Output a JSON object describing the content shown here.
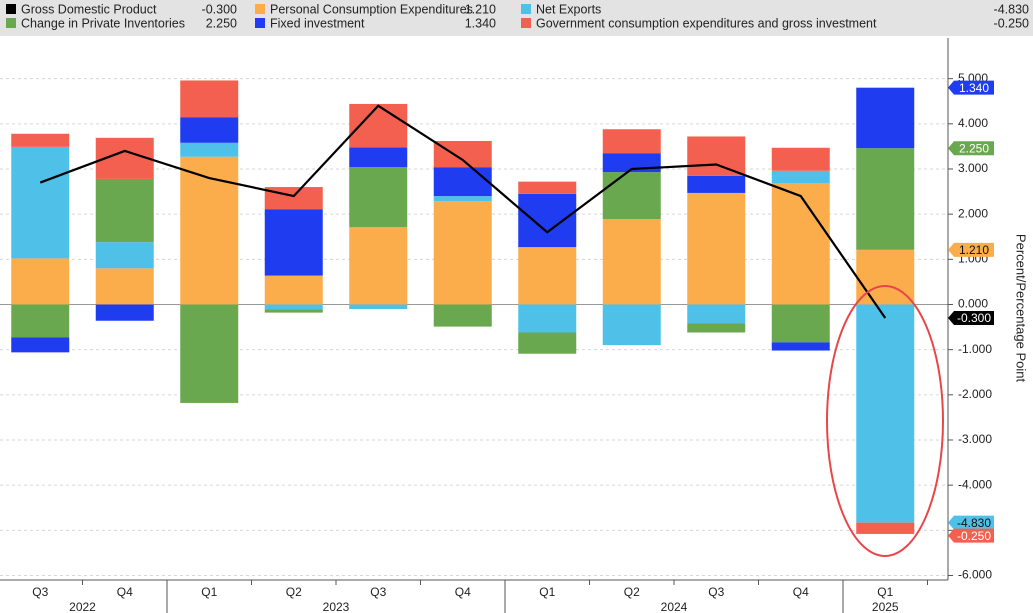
{
  "chart_data": {
    "type": "bar",
    "stacked": true,
    "y_label": "Percent/Percentage Point",
    "categories": [
      "Q3",
      "Q4",
      "Q1",
      "Q2",
      "Q3",
      "Q4",
      "Q1",
      "Q2",
      "Q3",
      "Q4",
      "Q1"
    ],
    "category_years": [
      "2022",
      "2022",
      "2023",
      "2023",
      "2023",
      "2023",
      "2024",
      "2024",
      "2024",
      "2024",
      "2025"
    ],
    "ylim": [
      -6.1,
      5.9
    ],
    "yticks": [
      {
        "value": 5,
        "label": "5.000"
      },
      {
        "value": 4,
        "label": "4.000"
      },
      {
        "value": 3,
        "label": "3.000"
      },
      {
        "value": 2,
        "label": "2.000"
      },
      {
        "value": 1,
        "label": "1.000"
      },
      {
        "value": 0,
        "label": "0.000"
      },
      {
        "value": -1,
        "label": "-1.000"
      },
      {
        "value": -2,
        "label": "-2.000"
      },
      {
        "value": -3,
        "label": "-3.000"
      },
      {
        "value": -4,
        "label": "-4.000"
      },
      {
        "value": -5,
        "label": "-5.000"
      },
      {
        "value": -6,
        "label": "-6.000"
      }
    ],
    "grid": true,
    "series": [
      {
        "name": "Gross Domestic Product",
        "type": "line",
        "color": "#000000",
        "legend_value": "-0.300",
        "values": [
          2.7,
          3.4,
          2.8,
          2.4,
          4.4,
          3.2,
          1.6,
          3.0,
          3.1,
          2.4,
          -0.3
        ]
      },
      {
        "name": "Personal Consumption Expenditures",
        "type": "bar",
        "color": "#fbad4c",
        "legend_value": "1.210",
        "values": [
          1.02,
          0.8,
          3.27,
          0.64,
          1.71,
          2.29,
          1.27,
          1.89,
          2.47,
          2.69,
          1.21
        ]
      },
      {
        "name": "Net Exports",
        "type": "bar",
        "color": "#4fc0e8",
        "legend_value": "-4.830",
        "values": [
          2.47,
          0.58,
          0.31,
          -0.11,
          -0.1,
          0.11,
          -0.62,
          -0.9,
          -0.42,
          0.27,
          -4.83
        ]
      },
      {
        "name": "Change in Private Inventories",
        "type": "bar",
        "color": "#6aa84f",
        "legend_value": "2.250",
        "values": [
          -0.73,
          1.4,
          -2.18,
          -0.07,
          1.33,
          -0.49,
          -0.47,
          1.04,
          -0.2,
          -0.84,
          2.25
        ]
      },
      {
        "name": "Fixed investment",
        "type": "bar",
        "color": "#1f3cf0",
        "legend_value": "1.340",
        "values": [
          -0.33,
          -0.36,
          0.56,
          1.47,
          0.44,
          0.64,
          1.18,
          0.42,
          0.38,
          -0.18,
          1.34
        ]
      },
      {
        "name": "Government consumption expenditures and gross investment",
        "type": "bar",
        "color": "#f4604f",
        "legend_value": "-0.250",
        "values": [
          0.29,
          0.91,
          0.82,
          0.49,
          0.96,
          0.58,
          0.27,
          0.53,
          0.87,
          0.51,
          -0.25
        ]
      }
    ]
  }
}
